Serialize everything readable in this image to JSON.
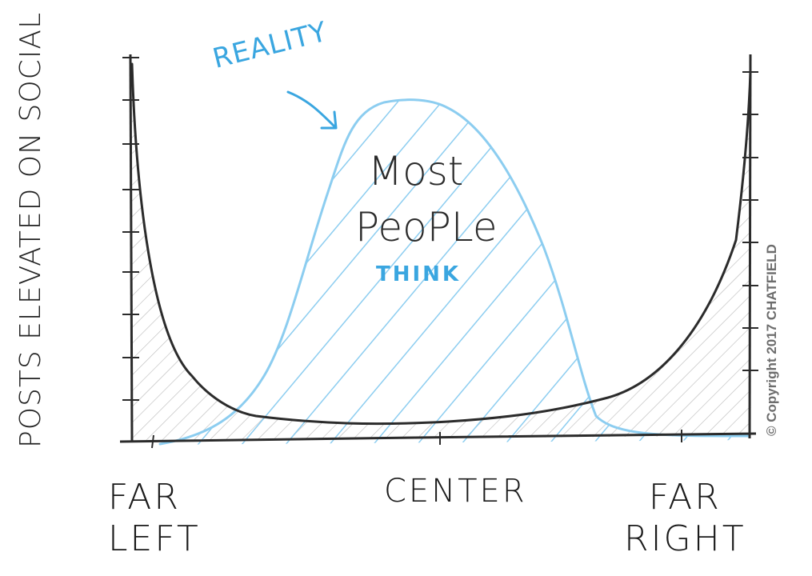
{
  "diagram": {
    "y_axis_label": "POSTS ELEVATED ON SOCIAL",
    "x_labels": {
      "left_line1": "FAR",
      "left_line2": "LEFT",
      "center": "CENTER",
      "right_line1": "FAR",
      "right_line2": "RIGHT"
    },
    "annotations": {
      "reality": "REALITY",
      "most": "Most",
      "people": "PeoPLe",
      "think": "THINK"
    },
    "copyright": "© Copyright 2017 CHATFIELD",
    "colors": {
      "ink": "#2b2b2b",
      "reality_blue": "#8ccdf0",
      "label_blue": "#3aa6e0",
      "hatch_gray": "#9a9a9a"
    }
  }
}
